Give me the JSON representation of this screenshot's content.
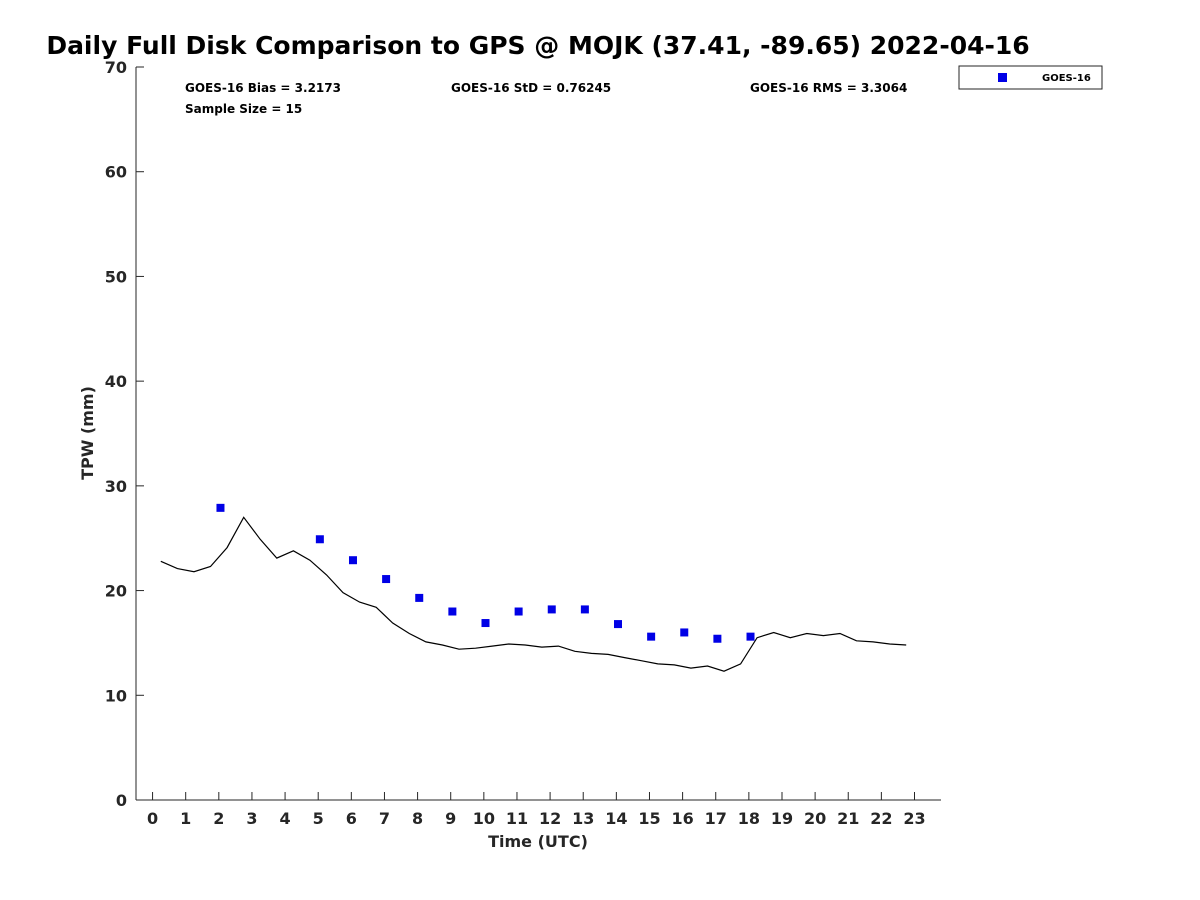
{
  "chart_data": {
    "type": "scatter",
    "title": "Daily Full Disk Comparison to GPS @ MOJK (37.41, -89.65) 2022-04-16",
    "xlabel": "Time (UTC)",
    "ylabel": "TPW (mm)",
    "xlim": [
      -0.5,
      23.8
    ],
    "ylim": [
      0,
      70
    ],
    "x_ticks": [
      "0",
      "1",
      "2",
      "3",
      "4",
      "5",
      "6",
      "7",
      "8",
      "9",
      "10",
      "11",
      "12",
      "13",
      "14",
      "15",
      "16",
      "17",
      "18",
      "19",
      "20",
      "21",
      "22",
      "23"
    ],
    "y_ticks": [
      "0",
      "10",
      "20",
      "30",
      "40",
      "50",
      "60",
      "70"
    ],
    "grid": false,
    "legend_position": "top-right",
    "stats": {
      "bias": "GOES-16 Bias = 3.2173",
      "std": "GOES-16 StD = 0.76245",
      "rms": "GOES-16 RMS = 3.3064",
      "sample": "Sample Size = 15"
    },
    "series": [
      {
        "name": "GOES-16",
        "kind": "scatter",
        "color": "#0000e6",
        "x": [
          2.05,
          5.05,
          6.05,
          7.05,
          8.05,
          9.05,
          10.05,
          11.05,
          12.05,
          13.05,
          14.05,
          15.05,
          16.05,
          17.05,
          18.05
        ],
        "y": [
          27.9,
          24.9,
          22.9,
          21.1,
          19.3,
          18.0,
          16.9,
          18.0,
          18.2,
          18.2,
          16.8,
          15.6,
          16.0,
          15.4,
          15.6
        ]
      },
      {
        "kind": "line",
        "color": "#000000",
        "x": [
          0.25,
          0.75,
          1.25,
          1.75,
          2.25,
          2.75,
          3.25,
          3.75,
          4.25,
          4.75,
          5.25,
          5.75,
          6.25,
          6.75,
          7.25,
          7.75,
          8.25,
          8.75,
          9.25,
          9.75,
          10.25,
          10.75,
          11.25,
          11.75,
          12.25,
          12.75,
          13.25,
          13.75,
          14.25,
          14.75,
          15.25,
          15.75,
          16.25,
          16.75,
          17.25,
          17.75,
          18.25,
          18.75,
          19.25,
          19.75,
          20.25,
          20.75,
          21.25,
          21.75,
          22.25,
          22.75
        ],
        "y": [
          22.8,
          22.1,
          21.8,
          22.3,
          24.1,
          27.0,
          24.9,
          23.1,
          23.8,
          22.9,
          21.5,
          19.8,
          18.9,
          18.4,
          16.9,
          15.9,
          15.1,
          14.8,
          14.4,
          14.5,
          14.7,
          14.9,
          14.8,
          14.6,
          14.7,
          14.2,
          14.0,
          13.9,
          13.6,
          13.3,
          13.0,
          12.9,
          12.6,
          12.8,
          12.3,
          13.0,
          15.5,
          16.0,
          15.5,
          15.9,
          15.7,
          15.9,
          15.2,
          15.1,
          14.9,
          14.8
        ]
      }
    ]
  }
}
